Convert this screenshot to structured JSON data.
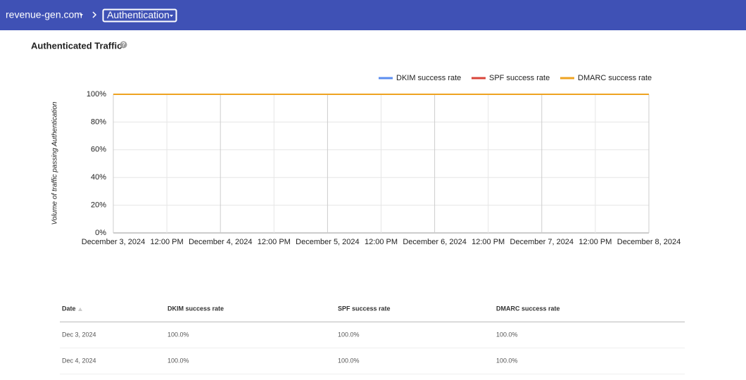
{
  "header": {
    "domain": "revenue-gen.com",
    "section": "Authentication"
  },
  "chart_data": {
    "type": "line",
    "title": "Authenticated Traffic",
    "y_label": "Volume of traffic passing Authentication",
    "x": [
      "2024-12-03",
      "2024-12-04",
      "2024-12-05",
      "2024-12-06",
      "2024-12-07",
      "2024-12-08"
    ],
    "xlim": [
      "2024-12-03",
      "2024-12-08"
    ],
    "xticks": [
      {
        "value": "2024-12-03T00:00",
        "label": "December 3, 2024"
      },
      {
        "value": "2024-12-03T12:00",
        "label": "12:00 PM"
      },
      {
        "value": "2024-12-04T00:00",
        "label": "December 4, 2024"
      },
      {
        "value": "2024-12-04T12:00",
        "label": "12:00 PM"
      },
      {
        "value": "2024-12-05T00:00",
        "label": "December 5, 2024"
      },
      {
        "value": "2024-12-05T12:00",
        "label": "12:00 PM"
      },
      {
        "value": "2024-12-06T00:00",
        "label": "December 6, 2024"
      },
      {
        "value": "2024-12-06T12:00",
        "label": "12:00 PM"
      },
      {
        "value": "2024-12-07T00:00",
        "label": "December 7, 2024"
      },
      {
        "value": "2024-12-07T12:00",
        "label": "12:00 PM"
      },
      {
        "value": "2024-12-08T00:00",
        "label": "December 8, 2024"
      }
    ],
    "ylim": [
      0,
      100
    ],
    "yticks": [
      {
        "value": 0,
        "label": "0%"
      },
      {
        "value": 20,
        "label": "20%"
      },
      {
        "value": 40,
        "label": "40%"
      },
      {
        "value": 60,
        "label": "60%"
      },
      {
        "value": 80,
        "label": "80%"
      },
      {
        "value": 100,
        "label": "100%"
      }
    ],
    "grid": true,
    "legend": "top-right",
    "series": [
      {
        "name": "DKIM success rate",
        "color": "#5b8def",
        "values": [
          100,
          100,
          100,
          100,
          100,
          100
        ]
      },
      {
        "name": "SPF success rate",
        "color": "#d9443a",
        "values": [
          100,
          100,
          100,
          100,
          100,
          100
        ]
      },
      {
        "name": "DMARC success rate",
        "color": "#eea321",
        "values": [
          100,
          100,
          100,
          100,
          100,
          100
        ]
      }
    ]
  },
  "table": {
    "columns": [
      "Date",
      "DKIM success rate",
      "SPF success rate",
      "DMARC success rate"
    ],
    "rows": [
      [
        "Dec 3, 2024",
        "100.0%",
        "100.0%",
        "100.0%"
      ],
      [
        "Dec 4, 2024",
        "100.0%",
        "100.0%",
        "100.0%"
      ]
    ]
  }
}
